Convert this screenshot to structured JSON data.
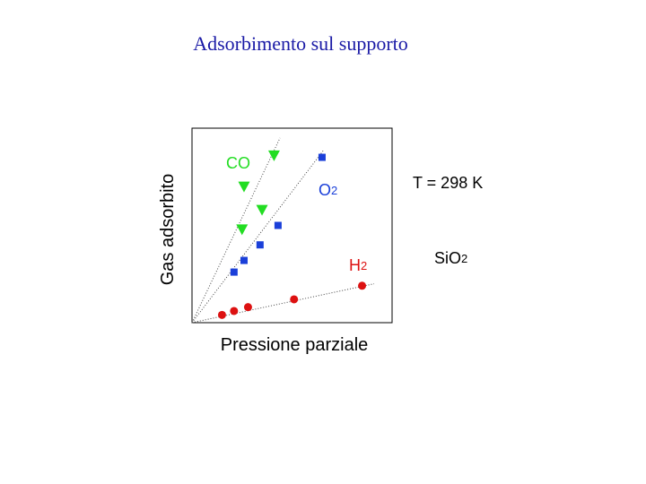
{
  "slide": {
    "title": "Adsorbimento sul supporto",
    "temperature": "T = 298 K",
    "support": {
      "base": "Si",
      "o": "O",
      "sub": "2"
    }
  },
  "colors": {
    "title": "#1a1aa6",
    "co": "#22dd22",
    "o2": "#1a3fd9",
    "h2": "#dd1111",
    "axis": "#000000"
  },
  "chart_data": {
    "type": "scatter",
    "xlabel": "Pressione parziale",
    "ylabel": "Gas adsorbito",
    "xlim": [
      0,
      10
    ],
    "ylim": [
      0,
      10
    ],
    "grid": false,
    "series": [
      {
        "name": "CO",
        "name_main": "CO",
        "name_sub": "",
        "marker": "triangle-down",
        "color": "#22dd22",
        "x": [
          2.5,
          3.5,
          2.6,
          4.1
        ],
        "y": [
          4.8,
          5.8,
          7.0,
          8.6
        ],
        "fit": {
          "from": [
            0,
            0
          ],
          "to": [
            4.4,
            9.5
          ]
        }
      },
      {
        "name": "O2",
        "name_main": "O",
        "name_sub": "2",
        "marker": "square",
        "color": "#1a3fd9",
        "x": [
          2.1,
          2.6,
          3.4,
          4.3,
          6.5
        ],
        "y": [
          2.6,
          3.2,
          4.0,
          5.0,
          8.5
        ],
        "fit": {
          "from": [
            0,
            0
          ],
          "to": [
            6.6,
            8.9
          ]
        }
      },
      {
        "name": "H2",
        "name_main": "H",
        "name_sub": "2",
        "marker": "circle",
        "color": "#dd1111",
        "x": [
          1.5,
          2.1,
          2.8,
          5.1,
          8.5
        ],
        "y": [
          0.4,
          0.6,
          0.8,
          1.2,
          1.9
        ],
        "fit": {
          "from": [
            0,
            0
          ],
          "to": [
            9.1,
            2.0
          ]
        }
      }
    ]
  }
}
